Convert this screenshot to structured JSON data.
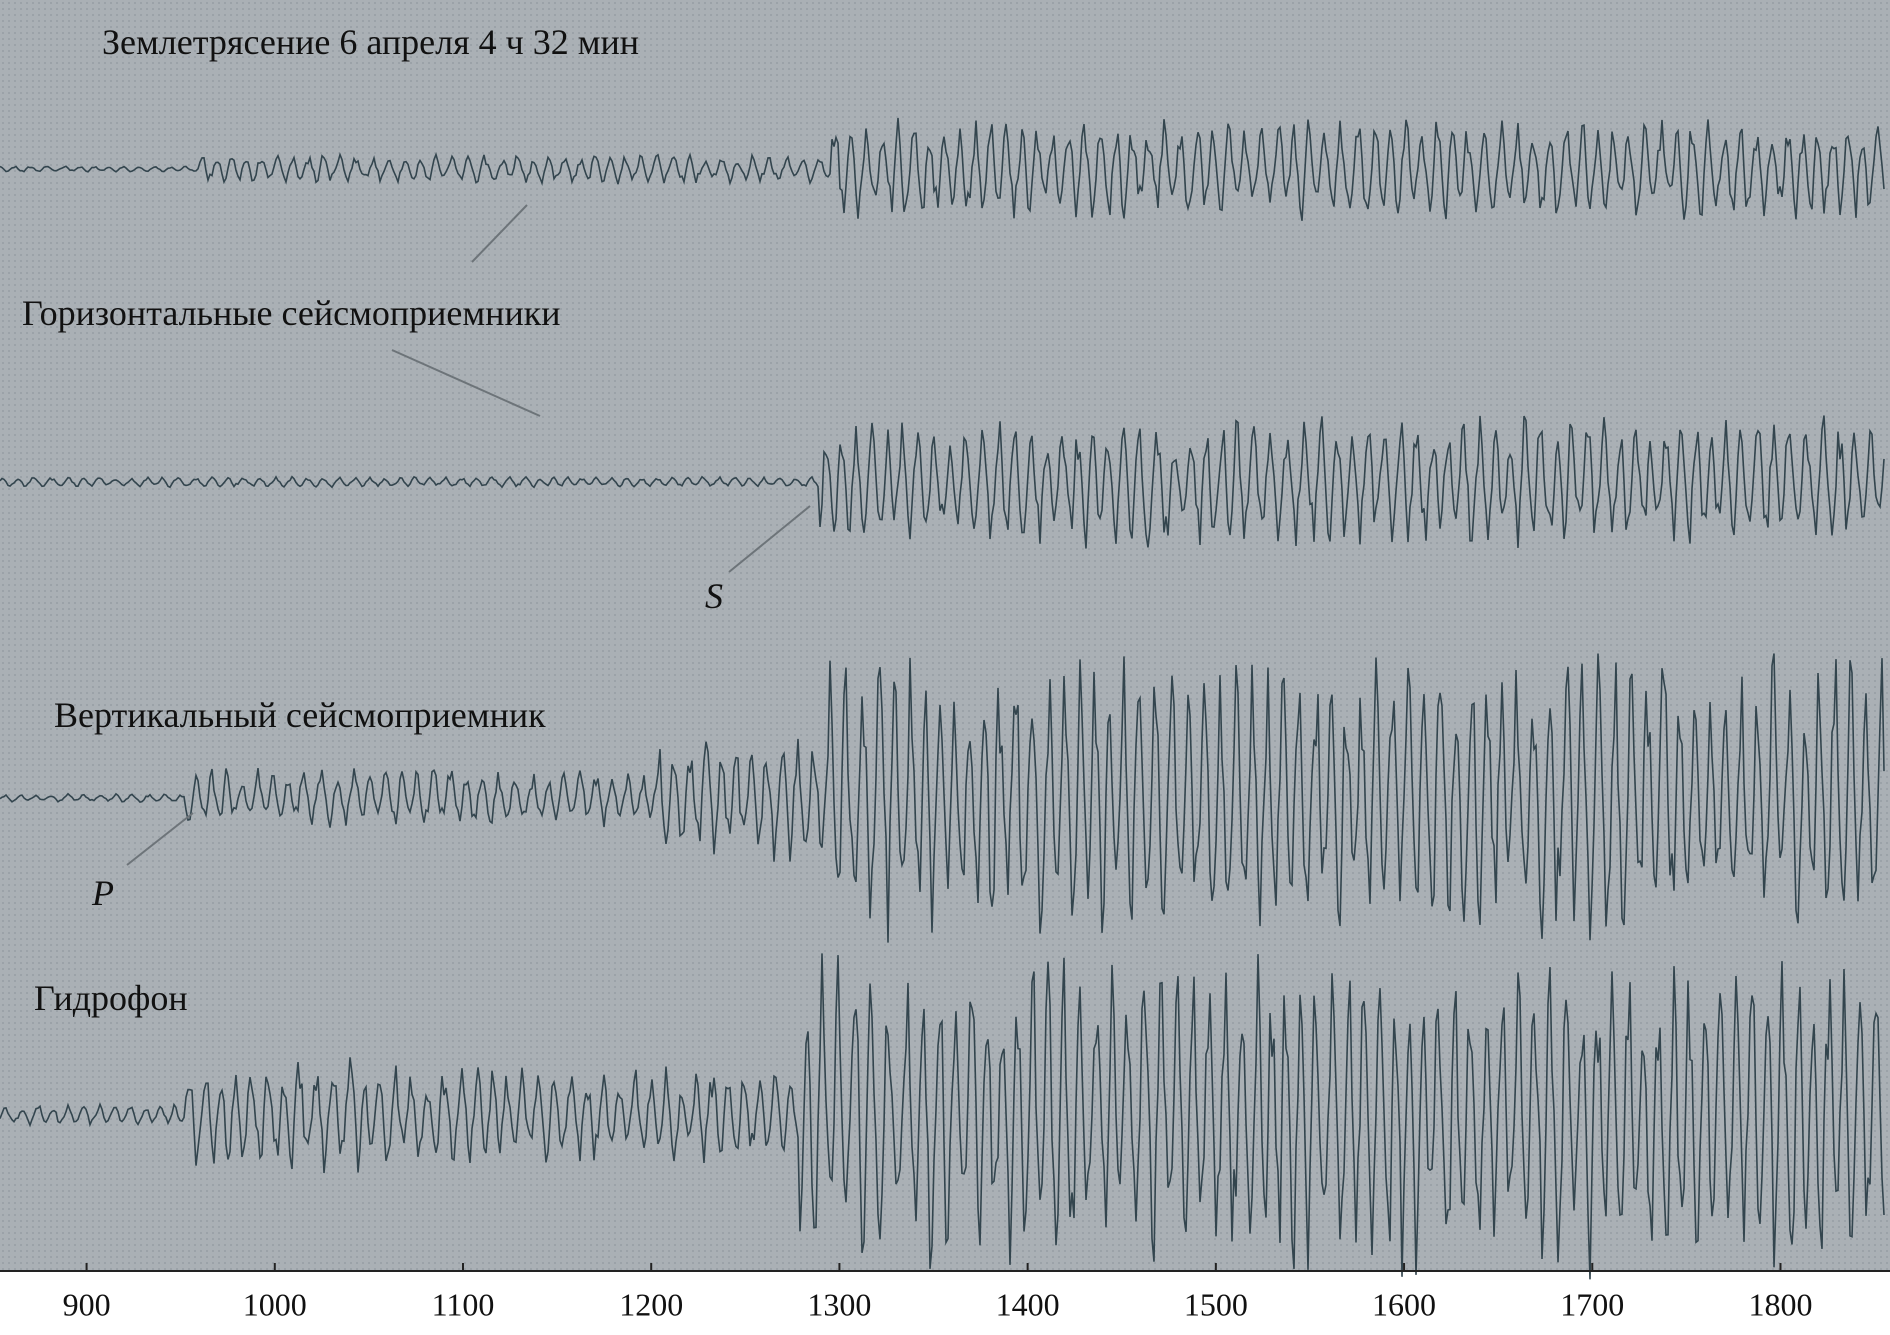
{
  "title": "Землетрясение 6 апреля 4 ч 32 мин",
  "traces": [
    {
      "label": "Горизонтальные сейсмоприемники"
    },
    {
      "label": "Вертикальный сейсмоприемник"
    },
    {
      "label": "Гидрофон"
    }
  ],
  "markers": [
    {
      "label": "S"
    },
    {
      "label": "P"
    }
  ],
  "x_axis": {
    "xlim": [
      854,
      1855
    ],
    "xticks": [
      900,
      1000,
      1100,
      1200,
      1300,
      1400,
      1500,
      1600,
      1700,
      1800
    ]
  }
}
